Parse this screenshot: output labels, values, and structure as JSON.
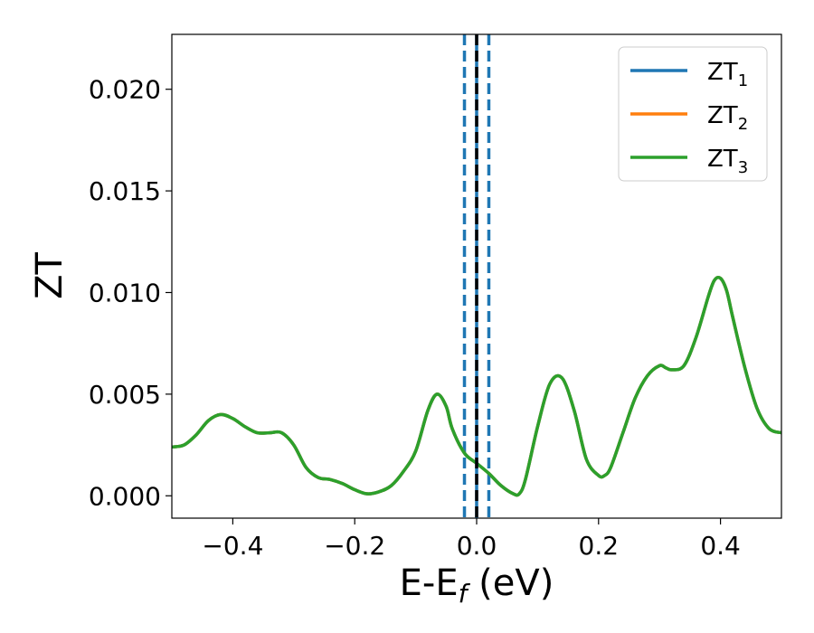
{
  "chart_data": {
    "type": "line",
    "xlabel": "E-E",
    "xlabel_subscript": "f",
    "xlabel_unit": " (eV)",
    "ylabel": "ZT",
    "xlim": [
      -0.5,
      0.5
    ],
    "ylim": [
      -0.0011,
      0.0227
    ],
    "xticks": [
      -0.4,
      -0.2,
      0.0,
      0.2,
      0.4
    ],
    "xtick_labels": [
      "−0.4",
      "−0.2",
      "0.0",
      "0.2",
      "0.4"
    ],
    "yticks": [
      0.0,
      0.005,
      0.01,
      0.015,
      0.02
    ],
    "ytick_labels": [
      "0.000",
      "0.005",
      "0.010",
      "0.015",
      "0.020"
    ],
    "grid": false,
    "legend_position": "top-right",
    "vertical_lines": [
      {
        "x": -0.02,
        "color": "#1f77b4",
        "style": "dashed"
      },
      {
        "x": 0.02,
        "color": "#1f77b4",
        "style": "dashed"
      },
      {
        "x": 0.0,
        "color": "#1f77b4",
        "style": "solid"
      },
      {
        "x": 0.0,
        "color": "#000000",
        "style": "dashed"
      }
    ],
    "x": [
      -0.5,
      -0.48,
      -0.46,
      -0.44,
      -0.42,
      -0.4,
      -0.38,
      -0.36,
      -0.34,
      -0.32,
      -0.3,
      -0.28,
      -0.26,
      -0.24,
      -0.22,
      -0.2,
      -0.18,
      -0.16,
      -0.14,
      -0.12,
      -0.1,
      -0.08,
      -0.065,
      -0.05,
      -0.04,
      -0.02,
      0.0,
      0.02,
      0.04,
      0.06,
      0.07,
      0.08,
      0.1,
      0.12,
      0.14,
      0.16,
      0.18,
      0.2,
      0.21,
      0.22,
      0.24,
      0.26,
      0.28,
      0.3,
      0.31,
      0.32,
      0.34,
      0.36,
      0.38,
      0.39,
      0.4,
      0.41,
      0.42,
      0.44,
      0.46,
      0.48,
      0.5
    ],
    "series": [
      {
        "name": "ZT",
        "name_subscript": "1",
        "color": "#1f77b4",
        "values": [
          0.0024,
          0.0025,
          0.003,
          0.0037,
          0.004,
          0.0038,
          0.0034,
          0.0031,
          0.0031,
          0.0031,
          0.0025,
          0.0014,
          0.0009,
          0.0008,
          0.0006,
          0.0003,
          0.0001,
          0.0002,
          0.0005,
          0.0012,
          0.0022,
          0.0042,
          0.005,
          0.0044,
          0.0033,
          0.0021,
          0.0016,
          0.0011,
          0.0005,
          0.0001,
          0.0001,
          0.0008,
          0.0034,
          0.0055,
          0.0058,
          0.0042,
          0.0018,
          0.001,
          0.001,
          0.0014,
          0.0031,
          0.0048,
          0.0059,
          0.0064,
          0.0063,
          0.0062,
          0.0064,
          0.0078,
          0.0098,
          0.0106,
          0.0107,
          0.0101,
          0.0088,
          0.0063,
          0.0043,
          0.0033,
          0.0031
        ]
      },
      {
        "name": "ZT",
        "name_subscript": "2",
        "color": "#ff7f0e",
        "values": [
          0.0024,
          0.0025,
          0.003,
          0.0037,
          0.004,
          0.0038,
          0.0034,
          0.0031,
          0.0031,
          0.0031,
          0.0025,
          0.0014,
          0.0009,
          0.0008,
          0.0006,
          0.0003,
          0.0001,
          0.0002,
          0.0005,
          0.0012,
          0.0022,
          0.0042,
          0.005,
          0.0044,
          0.0033,
          0.0021,
          0.0016,
          0.0011,
          0.0005,
          0.0001,
          0.0001,
          0.0008,
          0.0034,
          0.0055,
          0.0058,
          0.0042,
          0.0018,
          0.001,
          0.001,
          0.0014,
          0.0031,
          0.0048,
          0.0059,
          0.0064,
          0.0063,
          0.0062,
          0.0064,
          0.0078,
          0.0098,
          0.0106,
          0.0107,
          0.0101,
          0.0088,
          0.0063,
          0.0043,
          0.0033,
          0.0031
        ]
      },
      {
        "name": "ZT",
        "name_subscript": "3",
        "color": "#2ca02c",
        "values": [
          0.0024,
          0.0025,
          0.003,
          0.0037,
          0.004,
          0.0038,
          0.0034,
          0.0031,
          0.0031,
          0.0031,
          0.0025,
          0.0014,
          0.0009,
          0.0008,
          0.0006,
          0.0003,
          0.0001,
          0.0002,
          0.0005,
          0.0012,
          0.0022,
          0.0042,
          0.005,
          0.0044,
          0.0033,
          0.0021,
          0.0016,
          0.0011,
          0.0005,
          0.0001,
          0.0001,
          0.0008,
          0.0034,
          0.0055,
          0.0058,
          0.0042,
          0.0018,
          0.001,
          0.001,
          0.0014,
          0.0031,
          0.0048,
          0.0059,
          0.0064,
          0.0063,
          0.0062,
          0.0064,
          0.0078,
          0.0098,
          0.0106,
          0.0107,
          0.0101,
          0.0088,
          0.0063,
          0.0043,
          0.0033,
          0.0031
        ]
      }
    ]
  }
}
